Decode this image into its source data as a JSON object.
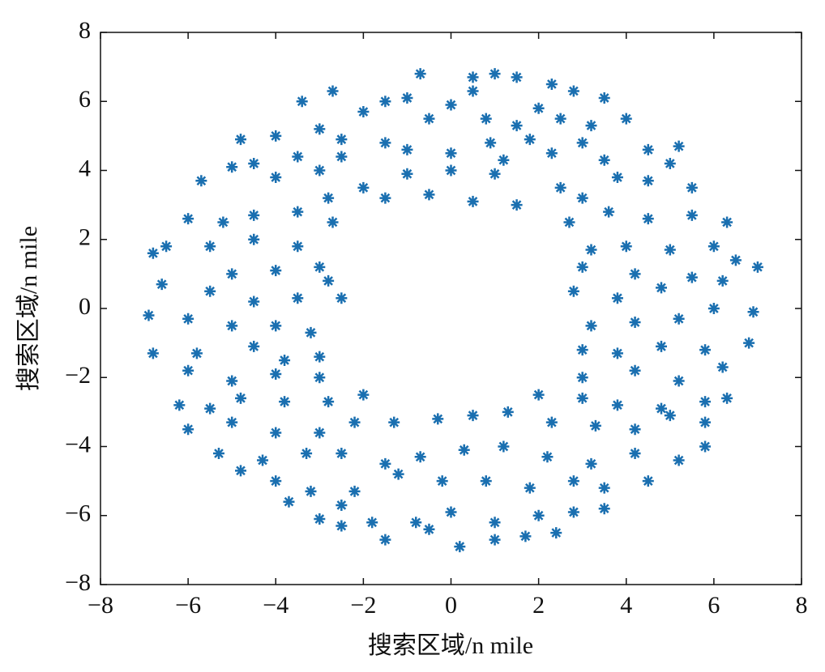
{
  "chart_data": {
    "type": "scatter",
    "xlabel": "搜索区域/n mile",
    "ylabel": "搜索区域/n mile",
    "color": "#1a6fb0",
    "marker": "asterisk",
    "xlim": [
      -8,
      8
    ],
    "ylim": [
      -8,
      8
    ],
    "xticks": [
      {
        "value": -8,
        "label": "−8"
      },
      {
        "value": -6,
        "label": "−6"
      },
      {
        "value": -4,
        "label": "−4"
      },
      {
        "value": -2,
        "label": "−2"
      },
      0,
      2,
      4,
      6,
      8
    ],
    "yticks": [
      {
        "value": -8,
        "label": "−8"
      },
      {
        "value": -6,
        "label": "−6"
      },
      {
        "value": -4,
        "label": "−4"
      },
      {
        "value": -2,
        "label": "−2"
      },
      0,
      2,
      4,
      6,
      8
    ],
    "x": [
      -0.7,
      0.5,
      1,
      1.5,
      2.3,
      2.8,
      3.5,
      -2.7,
      -3.4,
      -1.5,
      -1,
      0,
      0.5,
      2,
      -2,
      -0.5,
      0.8,
      1.5,
      2.5,
      3.2,
      4,
      -3,
      -4,
      -4.8,
      -2.5,
      -1.5,
      0.9,
      1.8,
      3,
      4.5,
      5.2,
      -5,
      -4.5,
      -3.5,
      -2.5,
      -1,
      0,
      1.2,
      2.3,
      3.5,
      5,
      -5.7,
      -4,
      -3,
      -2,
      -1,
      0,
      1,
      2.5,
      3.8,
      4.5,
      5.5,
      -1.5,
      -0.5,
      0.5,
      1.5,
      -2.8,
      3,
      -6,
      -5.2,
      -4.5,
      -3.5,
      -2.7,
      2.7,
      3.6,
      4.5,
      5.5,
      6.3,
      -6.5,
      -5.5,
      -4.5,
      -3.5,
      -3,
      3.2,
      4,
      5,
      6,
      -6.8,
      -5,
      -4,
      -2.8,
      3,
      4.2,
      5.5,
      6.5,
      7,
      -6.6,
      -5.5,
      -4.5,
      -3.5,
      -2.5,
      2.8,
      3.8,
      4.8,
      6.2,
      -6.9,
      -6,
      -5,
      -4,
      -3.2,
      3.2,
      4.2,
      5.2,
      6,
      6.9,
      -6.8,
      -5.8,
      -4.5,
      -3.8,
      -3,
      3,
      3.8,
      4.8,
      5.8,
      6.8,
      -6,
      -5,
      -4,
      -3,
      3,
      4.2,
      5.2,
      6.2,
      -6.2,
      -5.5,
      -4.8,
      -3.8,
      -2.8,
      -2,
      2,
      3,
      3.8,
      4.8,
      5.8,
      6.3,
      -6,
      -5,
      -4,
      -3,
      -2.2,
      -1.3,
      -0.3,
      0.5,
      1.3,
      2.3,
      3.3,
      4.2,
      5,
      5.8,
      -5.3,
      -4.3,
      -3.3,
      -2.5,
      -1.5,
      -0.7,
      0.3,
      1.2,
      2.2,
      3.2,
      4.2,
      5.2,
      5.8,
      -4.8,
      -4,
      -3.2,
      -2.2,
      -1.2,
      -0.2,
      0.8,
      1.8,
      2.8,
      3.5,
      4.5,
      -3.7,
      -2.5,
      -1.8,
      -0.8,
      0,
      1,
      2,
      2.8,
      3.5,
      -3,
      -2.5,
      -1.5,
      -0.5,
      0.2,
      1,
      1.7,
      2.4
    ],
    "values": [
      6.8,
      6.7,
      6.8,
      6.7,
      6.5,
      6.3,
      6.1,
      6.3,
      6,
      6,
      6.1,
      5.9,
      6.3,
      5.8,
      5.7,
      5.5,
      5.5,
      5.3,
      5.5,
      5.3,
      5.5,
      5.2,
      5,
      4.9,
      4.9,
      4.8,
      4.8,
      4.9,
      4.8,
      4.6,
      4.7,
      4.1,
      4.2,
      4.4,
      4.4,
      4.6,
      4.5,
      4.3,
      4.5,
      4.3,
      4.2,
      3.7,
      3.8,
      4,
      3.5,
      3.9,
      4,
      3.9,
      3.5,
      3.8,
      3.7,
      3.5,
      3.2,
      3.3,
      3.1,
      3,
      3.2,
      3.2,
      2.6,
      2.5,
      2.7,
      2.8,
      2.5,
      2.5,
      2.8,
      2.6,
      2.7,
      2.5,
      1.8,
      1.8,
      2,
      1.8,
      1.2,
      1.7,
      1.8,
      1.7,
      1.8,
      1.6,
      1.0,
      1.1,
      0.8,
      1.2,
      1,
      0.9,
      1.4,
      1.2,
      0.7,
      0.5,
      0.2,
      0.3,
      0.3,
      0.5,
      0.3,
      0.6,
      0.8,
      -0.2,
      -0.3,
      -0.5,
      -0.5,
      -0.7,
      -0.5,
      -0.4,
      -0.3,
      0,
      -0.1,
      -1.3,
      -1.3,
      -1.1,
      -1.5,
      -1.4,
      -1.2,
      -1.3,
      -1.1,
      -1.2,
      -1,
      -1.8,
      -2.1,
      -1.9,
      -2,
      -2,
      -1.8,
      -2.1,
      -1.7,
      -2.8,
      -2.9,
      -2.6,
      -2.7,
      -2.7,
      -2.5,
      -2.5,
      -2.6,
      -2.8,
      -2.9,
      -2.7,
      -2.6,
      -3.5,
      -3.3,
      -3.6,
      -3.6,
      -3.3,
      -3.3,
      -3.2,
      -3.1,
      -3,
      -3.3,
      -3.4,
      -3.5,
      -3.1,
      -3.3,
      -4.2,
      -4.4,
      -4.2,
      -4.2,
      -4.5,
      -4.3,
      -4.1,
      -4,
      -4.3,
      -4.5,
      -4.2,
      -4.4,
      -4,
      -4.7,
      -5,
      -5.3,
      -5.3,
      -4.8,
      -5,
      -5,
      -5.2,
      -5,
      -5.2,
      -5,
      -5.6,
      -5.7,
      -6.2,
      -6.2,
      -5.9,
      -6.2,
      -6,
      -5.9,
      -5.8,
      -6.1,
      -6.3,
      -6.7,
      -6.4,
      -6.9,
      -6.7,
      -6.6,
      -6.5
    ]
  }
}
